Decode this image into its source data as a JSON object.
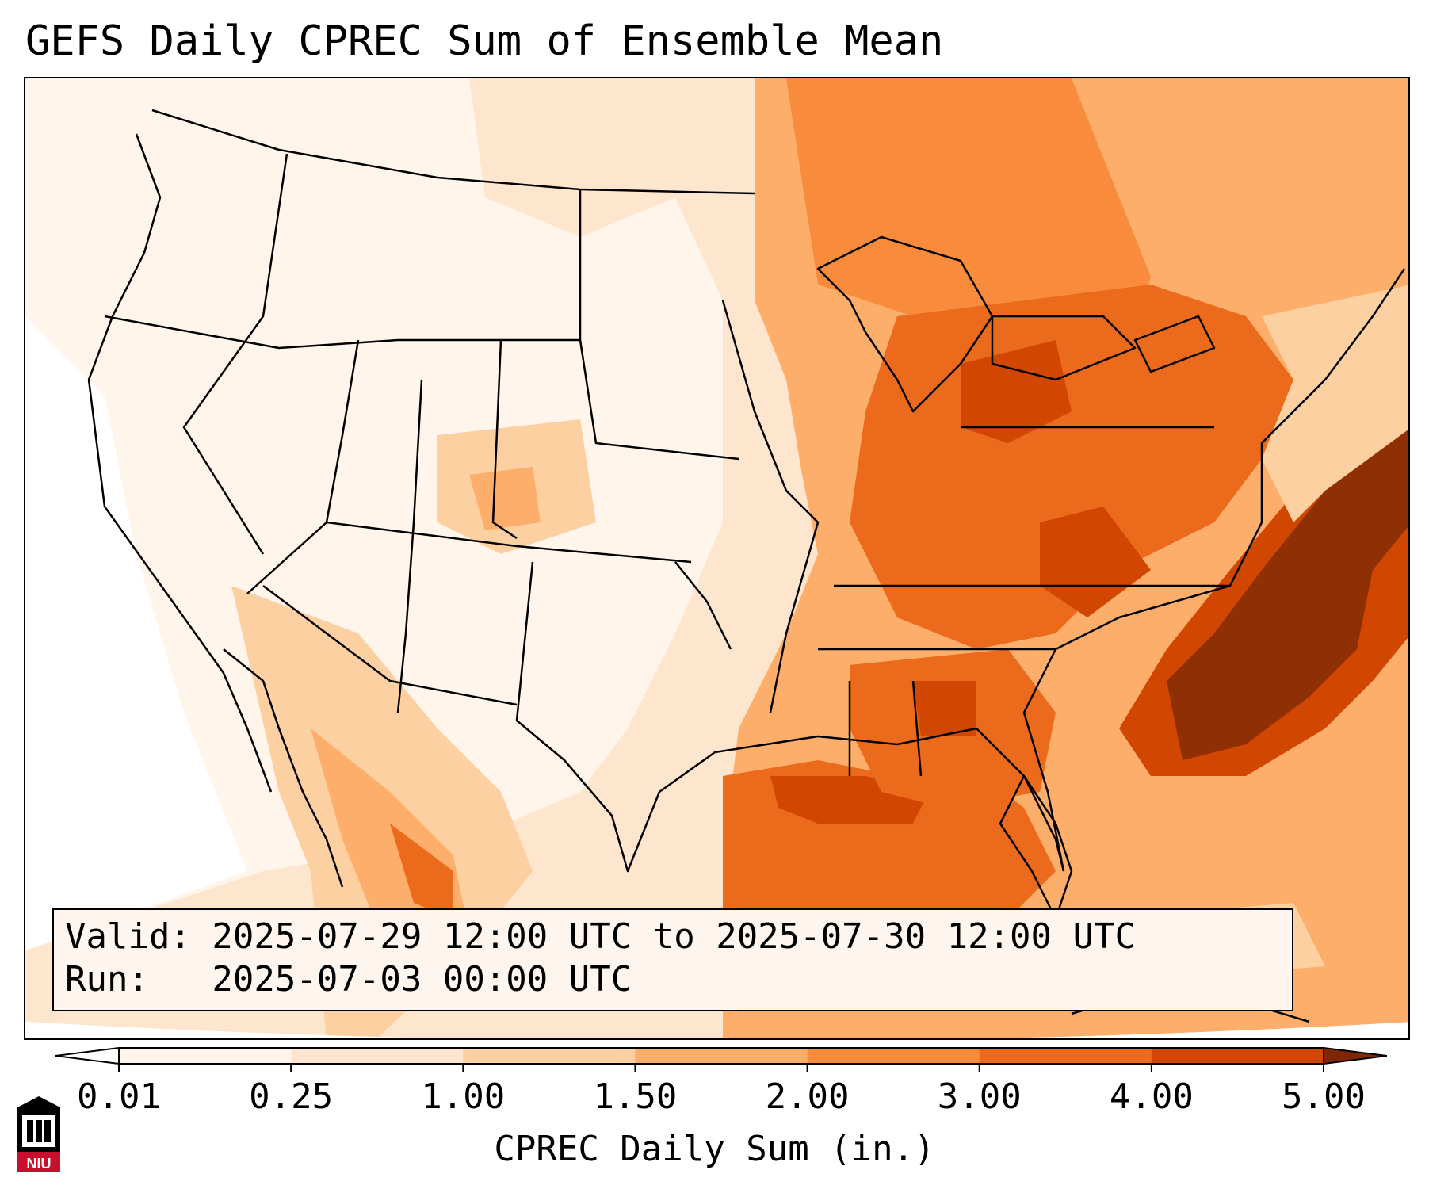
{
  "title": "GEFS Daily CPREC Sum of Ensemble Mean",
  "info": {
    "valid_line": "Valid: 2025-07-29 12:00 UTC to 2025-07-30 12:00 UTC",
    "run_line": "Run:   2025-07-03 00:00 UTC"
  },
  "colorbar": {
    "label": "CPREC Daily Sum (in.)",
    "ticks": [
      "0.01",
      "0.25",
      "1.00",
      "1.50",
      "2.00",
      "3.00",
      "4.00",
      "5.00"
    ],
    "colors": [
      "#fff5eb",
      "#fee6ce",
      "#fdd0a2",
      "#fdae6b",
      "#f98c3c",
      "#ec6a1b",
      "#d14701",
      "#8f2f04"
    ],
    "under_color": "#ffffff",
    "over_color": "#7f2704"
  },
  "logo": {
    "text": "NIU",
    "color": "#c8102e"
  }
}
